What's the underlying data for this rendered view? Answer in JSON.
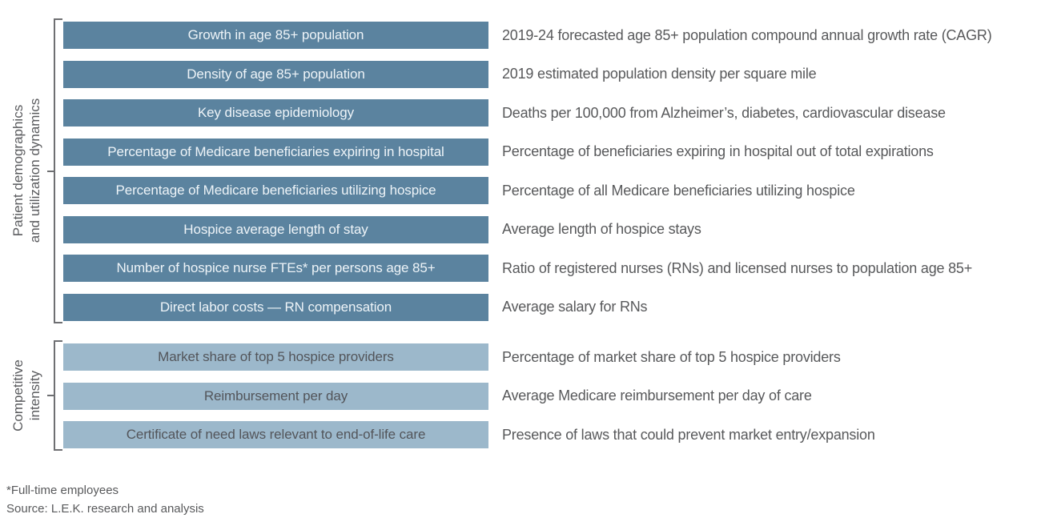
{
  "sections": [
    {
      "label_lines": [
        "Patient demographics",
        "and utilization dynamics"
      ],
      "rows": [
        {
          "bar": "Growth in age 85+ population",
          "desc": "2019-24 forecasted age 85+ population compound annual growth rate (CAGR)"
        },
        {
          "bar": "Density of age 85+ population",
          "desc": "2019 estimated population density per square mile"
        },
        {
          "bar": "Key disease epidemiology",
          "desc": "Deaths per 100,000 from Alzheimer’s, diabetes, cardiovascular disease"
        },
        {
          "bar": "Percentage of Medicare beneficiaries expiring in hospital",
          "desc": "Percentage of beneficiaries expiring in hospital out of total expirations"
        },
        {
          "bar": "Percentage of Medicare beneficiaries utilizing hospice",
          "desc": "Percentage of all Medicare beneficiaries utilizing hospice"
        },
        {
          "bar": "Hospice average length of stay",
          "desc": "Average length of hospice stays"
        },
        {
          "bar": "Number of hospice nurse FTEs* per persons age 85+",
          "desc": "Ratio of registered nurses (RNs) and licensed nurses to population age 85+"
        },
        {
          "bar": "Direct labor costs — RN compensation",
          "desc": "Average salary for RNs"
        }
      ]
    },
    {
      "label_lines": [
        "Competitive",
        "intensity"
      ],
      "rows": [
        {
          "bar": "Market share of top 5 hospice providers",
          "desc": "Percentage of market share of top 5 hospice providers"
        },
        {
          "bar": "Reimbursement per day",
          "desc": "Average Medicare reimbursement per day of care"
        },
        {
          "bar": "Certificate of need laws relevant to end-of-life care",
          "desc": "Presence of laws that could prevent market entry/expansion"
        }
      ]
    }
  ],
  "footnotes": [
    "*Full-time employees",
    "Source: L.E.K. research and analysis"
  ],
  "colors": {
    "dark_bar": "#5b839f",
    "dark_bar_text": "#eef4f8",
    "light_bar": "#9cb8cb",
    "light_bar_text": "#53555a",
    "text_gray": "#58595b",
    "bracket_gray": "#6e6f72"
  }
}
